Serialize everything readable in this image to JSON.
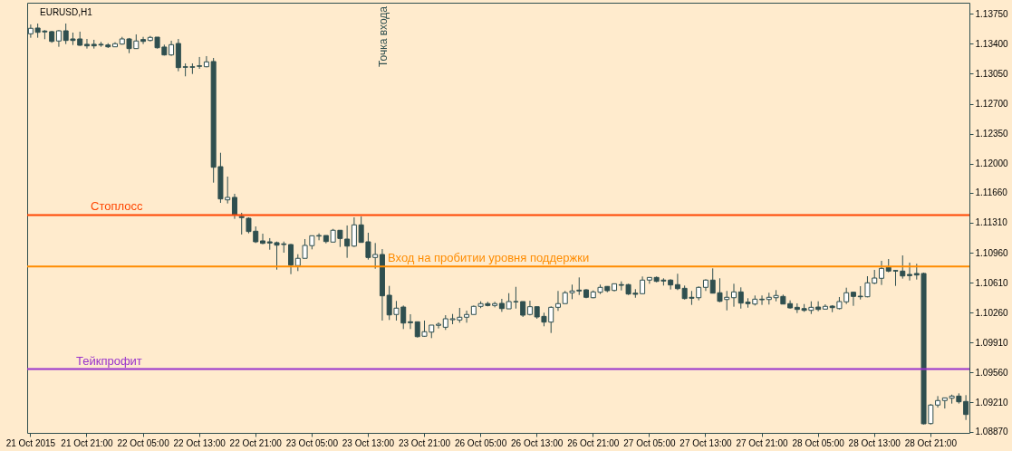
{
  "chart_data": {
    "type": "candlestick",
    "title": "EURUSD,H1",
    "color": "#2f4f4f",
    "categories": [
      "21 Oct 2015",
      null,
      null,
      null,
      null,
      null,
      null,
      null,
      "21 Oct 21:00",
      null,
      null,
      null,
      null,
      null,
      null,
      null,
      "22 Oct 05:00",
      null,
      null,
      null,
      null,
      null,
      null,
      null,
      "22 Oct 13:00",
      null,
      null,
      null,
      null,
      null,
      null,
      null,
      "22 Oct 21:00",
      null,
      null,
      null,
      null,
      null,
      null,
      null,
      "23 Oct 05:00",
      null,
      null,
      null,
      null,
      null,
      null,
      null,
      "23 Oct 13:00",
      null,
      null,
      null,
      null,
      null,
      null,
      null,
      "23 Oct 21:00",
      null,
      null,
      null,
      null,
      null,
      null,
      null,
      "26 Oct 05:00",
      null,
      null,
      null,
      null,
      null,
      null,
      null,
      "26 Oct 13:00",
      null,
      null,
      null,
      null,
      null,
      null,
      null,
      "26 Oct 21:00",
      null,
      null,
      null,
      null,
      null,
      null,
      null,
      "27 Oct 05:00",
      null,
      null,
      null,
      null,
      null,
      null,
      null,
      "27 Oct 13:00",
      null,
      null,
      null,
      null,
      null,
      null,
      null,
      "27 Oct 21:00",
      null,
      null,
      null,
      null,
      null,
      null,
      null,
      "28 Oct 05:00",
      null,
      null,
      null,
      null,
      null,
      null,
      null,
      "28 Oct 13:00",
      null,
      null,
      null,
      null,
      null,
      null,
      null,
      "28 Oct 21:00",
      null,
      null,
      null,
      null,
      null
    ],
    "ohlc": [
      [
        1.13517,
        1.13626,
        1.13471,
        1.13581
      ],
      [
        1.13584,
        1.13637,
        1.13471,
        1.13534
      ],
      [
        1.13549,
        1.1356,
        1.13454,
        1.13539
      ],
      [
        1.13542,
        1.13552,
        1.13412,
        1.13428
      ],
      [
        1.13433,
        1.1356,
        1.13365,
        1.13552
      ],
      [
        1.13552,
        1.13637,
        1.13397,
        1.13439
      ],
      [
        1.13457,
        1.13531,
        1.13386,
        1.13439
      ],
      [
        1.13457,
        1.13542,
        1.13376,
        1.13383
      ],
      [
        1.13394,
        1.13457,
        1.13344,
        1.13376
      ],
      [
        1.13394,
        1.13447,
        1.13344,
        1.13376
      ],
      [
        1.13394,
        1.13422,
        1.13365,
        1.13386
      ],
      [
        1.13386,
        1.13407,
        1.13351,
        1.13365
      ],
      [
        1.13365,
        1.13418,
        1.13365,
        1.13401
      ],
      [
        1.13397,
        1.13481,
        1.1339,
        1.13457
      ],
      [
        1.13457,
        1.13468,
        1.13291,
        1.13344
      ],
      [
        1.13344,
        1.1351,
        1.13344,
        1.13433
      ],
      [
        1.1345,
        1.13481,
        1.13397,
        1.13428
      ],
      [
        1.13439,
        1.13492,
        1.13428,
        1.13475
      ],
      [
        1.13478,
        1.13478,
        1.13344,
        1.13354
      ],
      [
        1.13362,
        1.1339,
        1.13263,
        1.1327
      ],
      [
        1.1327,
        1.13436,
        1.13259,
        1.1339
      ],
      [
        1.13404,
        1.13457,
        1.13079,
        1.13122
      ],
      [
        1.13132,
        1.13171,
        1.1302,
        1.13126
      ],
      [
        1.13132,
        1.13171,
        1.13048,
        1.13126
      ],
      [
        1.13143,
        1.13246,
        1.13108,
        1.13137
      ],
      [
        1.13132,
        1.13256,
        1.13126,
        1.13189
      ],
      [
        1.13193,
        1.13235,
        1.11778,
        1.11958
      ],
      [
        1.11965,
        1.12127,
        1.11542,
        1.11588
      ],
      [
        1.11577,
        1.11849,
        1.11535,
        1.11606
      ],
      [
        1.11606,
        1.11648,
        1.11355,
        1.11405
      ],
      [
        1.11383,
        1.11426,
        1.11172,
        1.1137
      ],
      [
        1.11362,
        1.11373,
        1.11186,
        1.11207
      ],
      [
        1.11211,
        1.11267,
        1.11073,
        1.11087
      ],
      [
        1.11098,
        1.11182,
        1.11059,
        1.11069
      ],
      [
        1.11087,
        1.1113,
        1.10995,
        1.11073
      ],
      [
        1.11077,
        1.1109,
        1.10762,
        1.11048
      ],
      [
        1.11063,
        1.1109,
        1.1096,
        1.11055
      ],
      [
        1.11055,
        1.11063,
        1.10709,
        1.10815
      ],
      [
        1.10809,
        1.10942,
        1.10745,
        1.10894
      ],
      [
        1.10894,
        1.11119,
        1.10894,
        1.11045
      ],
      [
        1.11042,
        1.11158,
        1.10999,
        1.11158
      ],
      [
        1.11154,
        1.11186,
        1.11105,
        1.11161
      ],
      [
        1.11161,
        1.11161,
        1.11069,
        1.1109
      ],
      [
        1.11084,
        1.11238,
        1.11084,
        1.11222
      ],
      [
        1.11222,
        1.11222,
        1.11027,
        1.11126
      ],
      [
        1.11119,
        1.11278,
        1.109,
        1.11037
      ],
      [
        1.11037,
        1.11373,
        1.11027,
        1.11285
      ],
      [
        1.11285,
        1.11383,
        1.1108,
        1.1108
      ],
      [
        1.11087,
        1.11193,
        1.10879,
        1.10904
      ],
      [
        1.10904,
        1.11073,
        1.10773,
        1.10939
      ],
      [
        1.10939,
        1.11002,
        1.10167,
        1.10456
      ],
      [
        1.10463,
        1.10572,
        1.10174,
        1.10233
      ],
      [
        1.10238,
        1.10396,
        1.10167,
        1.10312
      ],
      [
        1.10325,
        1.10343,
        1.10068,
        1.10138
      ],
      [
        1.10153,
        1.10241,
        1.10068,
        1.10142
      ],
      [
        1.10153,
        1.10153,
        1.09969,
        1.09979
      ],
      [
        1.09984,
        1.10167,
        1.09979,
        1.10037
      ],
      [
        1.10032,
        1.10114,
        1.09962,
        1.10114
      ],
      [
        1.10111,
        1.10146,
        1.10075,
        1.10124
      ],
      [
        1.10089,
        1.1023,
        1.10058,
        1.10188
      ],
      [
        1.10177,
        1.10244,
        1.10124,
        1.10188
      ],
      [
        1.10174,
        1.10315,
        1.10142,
        1.10206
      ],
      [
        1.10206,
        1.10283,
        1.10142,
        1.10238
      ],
      [
        1.10238,
        1.10343,
        1.10238,
        1.10333
      ],
      [
        1.10333,
        1.10392,
        1.10312,
        1.10365
      ],
      [
        1.10365,
        1.10386,
        1.10333,
        1.10343
      ],
      [
        1.10343,
        1.10386,
        1.10322,
        1.10365
      ],
      [
        1.10368,
        1.10421,
        1.10269,
        1.10307
      ],
      [
        1.10304,
        1.10487,
        1.10304,
        1.10389
      ],
      [
        1.10389,
        1.10561,
        1.10307,
        1.10386
      ],
      [
        1.10389,
        1.10389,
        1.10209,
        1.1023
      ],
      [
        1.10238,
        1.10399,
        1.10227,
        1.10329
      ],
      [
        1.10329,
        1.10329,
        1.10188,
        1.10209
      ],
      [
        1.10216,
        1.10259,
        1.101,
        1.10149
      ],
      [
        1.10149,
        1.10333,
        1.10022,
        1.10322
      ],
      [
        1.10322,
        1.10513,
        1.1028,
        1.10365
      ],
      [
        1.10365,
        1.10513,
        1.10365,
        1.10492
      ],
      [
        1.10492,
        1.10587,
        1.10417,
        1.10513
      ],
      [
        1.10523,
        1.10671,
        1.10466,
        1.10513
      ],
      [
        1.10526,
        1.10534,
        1.10428,
        1.10439
      ],
      [
        1.10434,
        1.10519,
        1.10428,
        1.10502
      ],
      [
        1.10498,
        1.10587,
        1.10477,
        1.10555
      ],
      [
        1.10566,
        1.10569,
        1.10498,
        1.10516
      ],
      [
        1.10519,
        1.10597,
        1.10508,
        1.10597
      ],
      [
        1.10587,
        1.10625,
        1.10519,
        1.10579
      ],
      [
        1.10587,
        1.10597,
        1.10466,
        1.10477
      ],
      [
        1.10487,
        1.10534,
        1.10434,
        1.10474
      ],
      [
        1.10481,
        1.10682,
        1.10481,
        1.1064
      ],
      [
        1.1064,
        1.10671,
        1.10597,
        1.10671
      ],
      [
        1.10671,
        1.10682,
        1.10614,
        1.10625
      ],
      [
        1.1064,
        1.10661,
        1.10576,
        1.10629
      ],
      [
        1.1064,
        1.1065,
        1.1053,
        1.10583
      ],
      [
        1.10587,
        1.10714,
        1.10523,
        1.1054
      ],
      [
        1.10544,
        1.10576,
        1.10413,
        1.10424
      ],
      [
        1.10439,
        1.10513,
        1.1035,
        1.10428
      ],
      [
        1.10434,
        1.10566,
        1.10403,
        1.10555
      ],
      [
        1.10555,
        1.1065,
        1.10513,
        1.1064
      ],
      [
        1.1064,
        1.10777,
        1.10487,
        1.10487
      ],
      [
        1.10492,
        1.10661,
        1.10382,
        1.10392
      ],
      [
        1.10413,
        1.10513,
        1.10286,
        1.10439
      ],
      [
        1.10434,
        1.10597,
        1.10329,
        1.10502
      ],
      [
        1.10502,
        1.10555,
        1.10307,
        1.10371
      ],
      [
        1.10382,
        1.10428,
        1.10318,
        1.10365
      ],
      [
        1.1036,
        1.1046,
        1.10343,
        1.10417
      ],
      [
        1.10417,
        1.1046,
        1.1035,
        1.1041
      ],
      [
        1.10413,
        1.10492,
        1.10354,
        1.10439
      ],
      [
        1.10434,
        1.10523,
        1.10392,
        1.1046
      ],
      [
        1.10449,
        1.1047,
        1.1036,
        1.1036
      ],
      [
        1.10365,
        1.10403,
        1.10307,
        1.10315
      ],
      [
        1.10322,
        1.10368,
        1.10255,
        1.10297
      ],
      [
        1.10307,
        1.1036,
        1.10269,
        1.10286
      ],
      [
        1.10286,
        1.10392,
        1.10244,
        1.10322
      ],
      [
        1.10325,
        1.10392,
        1.10276,
        1.10297
      ],
      [
        1.10301,
        1.10357,
        1.10301,
        1.10333
      ],
      [
        1.10336,
        1.10347,
        1.10265,
        1.10318
      ],
      [
        1.10307,
        1.10442,
        1.10297,
        1.10389
      ],
      [
        1.10386,
        1.10551,
        1.1036,
        1.10492
      ],
      [
        1.10498,
        1.10505,
        1.10339,
        1.10449
      ],
      [
        1.10452,
        1.10569,
        1.10413,
        1.10445
      ],
      [
        1.10445,
        1.10685,
        1.10439,
        1.10608
      ],
      [
        1.10604,
        1.10759,
        1.10593,
        1.10664
      ],
      [
        1.10661,
        1.10865,
        1.10583,
        1.10777
      ],
      [
        1.10788,
        1.10886,
        1.10731,
        1.10745
      ],
      [
        1.10752,
        1.10756,
        1.10572,
        1.10745
      ],
      [
        1.10745,
        1.10928,
        1.10657,
        1.10688
      ],
      [
        1.10706,
        1.10844,
        1.10635,
        1.10692
      ],
      [
        1.10717,
        1.1083,
        1.10646,
        1.10699
      ],
      [
        1.10717,
        1.10727,
        1.08953,
        1.08961
      ],
      [
        1.08964,
        1.09193,
        1.08953,
        1.0918
      ],
      [
        1.0918,
        1.09285,
        1.09151,
        1.09233
      ],
      [
        1.09233,
        1.09264,
        1.0914,
        1.09264
      ],
      [
        1.0926,
        1.09302,
        1.09197,
        1.09285
      ],
      [
        1.09285,
        1.09317,
        1.09197,
        1.09218
      ],
      [
        1.09222,
        1.09296,
        1.09006,
        1.0907
      ]
    ],
    "ref_lines": [
      {
        "axis": "y",
        "value": 1.114,
        "label": "Стоплосс",
        "color": "#ff4500"
      },
      {
        "axis": "y",
        "value": 1.108,
        "label": "Вход на пробитии уровня поддержки",
        "color": "#ff8c00"
      },
      {
        "axis": "y",
        "value": 1.096,
        "label": "Тейкпрофит",
        "color": "#9932cc"
      }
    ],
    "annotations": [
      "Точка входа"
    ],
    "ylim": [
      1.08855,
      1.1388
    ],
    "yticks": [
      {
        "value": 1.1375,
        "label": "1.13750"
      },
      {
        "value": 1.134,
        "label": "1.13400"
      },
      {
        "value": 1.1305,
        "label": "1.13050"
      },
      {
        "value": 1.127,
        "label": "1.12700"
      },
      {
        "value": 1.1235,
        "label": "1.12350"
      },
      {
        "value": 1.12,
        "label": "1.12000"
      },
      {
        "value": 1.1166,
        "label": "1.11660"
      },
      {
        "value": 1.1131,
        "label": "1.11310"
      },
      {
        "value": 1.1096,
        "label": "1.10960"
      },
      {
        "value": 1.1061,
        "label": "1.10610"
      },
      {
        "value": 1.1026,
        "label": "1.10260"
      },
      {
        "value": 1.0991,
        "label": "1.09910"
      },
      {
        "value": 1.0956,
        "label": "1.09560"
      },
      {
        "value": 1.0921,
        "label": "1.09210"
      },
      {
        "value": 1.0887,
        "label": "1.08870"
      }
    ]
  }
}
